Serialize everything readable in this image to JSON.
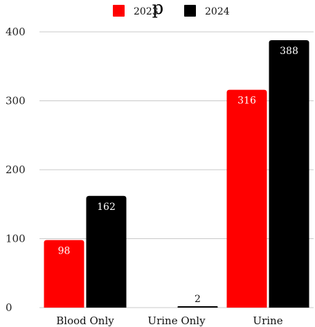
{
  "chart_data": {
    "type": "bar",
    "title": "p",
    "categories": [
      "Blood Only",
      "Urine Only",
      "Urine"
    ],
    "series": [
      {
        "name": "2023",
        "color": "#ff0000",
        "values": [
          98,
          0,
          316
        ]
      },
      {
        "name": "2024",
        "color": "#000000",
        "values": [
          162,
          2,
          388
        ]
      }
    ],
    "data_labels": [
      [
        "98",
        "",
        "316"
      ],
      [
        "162",
        "2",
        "388"
      ]
    ],
    "ylim": [
      0,
      400
    ],
    "yticks": [
      0,
      100,
      200,
      300,
      400
    ],
    "grid": true,
    "legend": "top-center"
  }
}
